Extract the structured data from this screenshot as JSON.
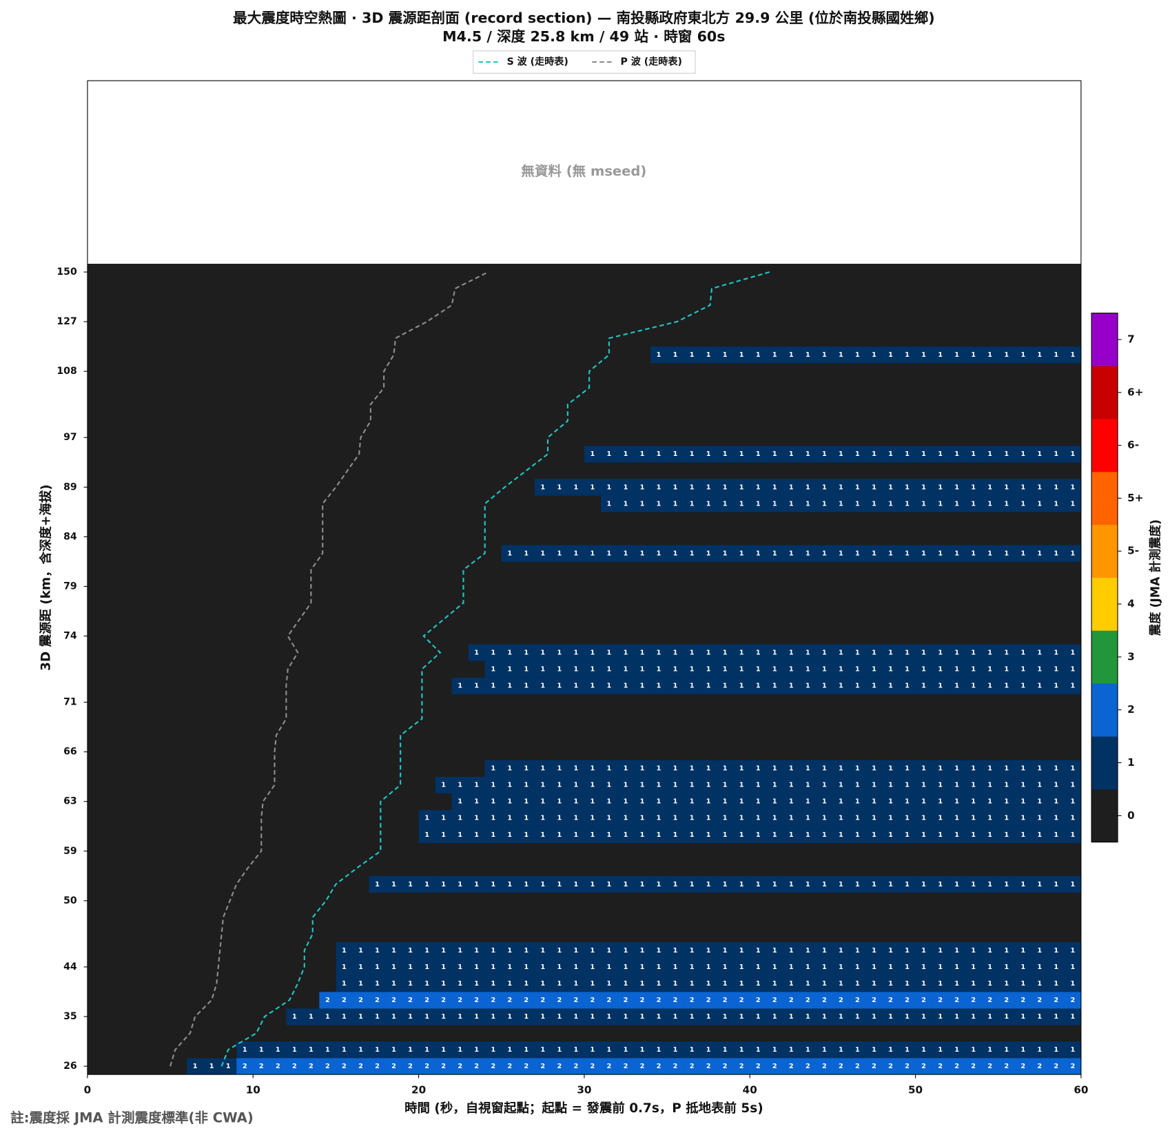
{
  "chart_data": {
    "type": "heatmap",
    "title": "最大震度時空熱圖 · 3D 震源距剖面 (record section) — 南投縣政府東北方  29.9  公里 (位於南投縣國姓鄉)",
    "subtitle": "M4.5 / 深度 25.8 km / 49 站 · 時窗 60s",
    "no_data_text": "無資料 (無 mseed)",
    "x_label": "時間 (秒，自視窗起點；起點 = 發震前 0.7s，P 抵地表前 5s)",
    "y_label": "3D 震源距 (km，含深度+海拔)",
    "footnote": "註:震度採 JMA 計測震度標準(非 CWA)",
    "xlim": [
      0,
      60
    ],
    "xticks": [
      0,
      10,
      20,
      30,
      40,
      50,
      60
    ],
    "y_categories": [
      26,
      null,
      null,
      35,
      null,
      null,
      44,
      null,
      null,
      null,
      50,
      null,
      null,
      59,
      null,
      null,
      63,
      null,
      null,
      66,
      null,
      null,
      71,
      null,
      null,
      null,
      74,
      null,
      null,
      79,
      null,
      null,
      84,
      null,
      null,
      89,
      null,
      null,
      97,
      null,
      null,
      null,
      108,
      null,
      null,
      127,
      null,
      null,
      150
    ],
    "z": [
      [
        0,
        0,
        0,
        0,
        0,
        0,
        1,
        1,
        1,
        2,
        2,
        2,
        2,
        2,
        2,
        2,
        2,
        2,
        2,
        2,
        2,
        2,
        2,
        2,
        2,
        2,
        2,
        2,
        2,
        2,
        2,
        2,
        2,
        2,
        2,
        2,
        2,
        2,
        2,
        2,
        2,
        2,
        2,
        2,
        2,
        2,
        2,
        2,
        2,
        2,
        2,
        2,
        2,
        2,
        2,
        2,
        2,
        2,
        2,
        2
      ],
      [
        0,
        0,
        0,
        0,
        0,
        0,
        0,
        0,
        0,
        1,
        1,
        1,
        1,
        1,
        1,
        1,
        1,
        1,
        1,
        1,
        1,
        1,
        1,
        1,
        1,
        1,
        1,
        1,
        1,
        1,
        1,
        1,
        1,
        1,
        1,
        1,
        1,
        1,
        1,
        1,
        1,
        1,
        1,
        1,
        1,
        1,
        1,
        1,
        1,
        1,
        1,
        1,
        1,
        1,
        1,
        1,
        1,
        1,
        1,
        1
      ],
      null,
      [
        0,
        0,
        0,
        0,
        0,
        0,
        0,
        0,
        0,
        0,
        0,
        0,
        1,
        1,
        1,
        1,
        1,
        1,
        1,
        1,
        1,
        1,
        1,
        1,
        1,
        1,
        1,
        1,
        1,
        1,
        1,
        1,
        1,
        1,
        1,
        1,
        1,
        1,
        1,
        1,
        1,
        1,
        1,
        1,
        1,
        1,
        1,
        1,
        1,
        1,
        1,
        1,
        1,
        1,
        1,
        1,
        1,
        1,
        1,
        1
      ],
      [
        0,
        0,
        0,
        0,
        0,
        0,
        0,
        0,
        0,
        0,
        0,
        0,
        0,
        0,
        2,
        2,
        2,
        2,
        2,
        2,
        2,
        2,
        2,
        2,
        2,
        2,
        2,
        2,
        2,
        2,
        2,
        2,
        2,
        2,
        2,
        2,
        2,
        2,
        2,
        2,
        2,
        2,
        2,
        2,
        2,
        2,
        2,
        2,
        2,
        2,
        2,
        2,
        2,
        2,
        2,
        2,
        2,
        2,
        2,
        2
      ],
      [
        0,
        0,
        0,
        0,
        0,
        0,
        0,
        0,
        0,
        0,
        0,
        0,
        0,
        0,
        0,
        1,
        1,
        1,
        1,
        1,
        1,
        1,
        1,
        1,
        1,
        1,
        1,
        1,
        1,
        1,
        1,
        1,
        1,
        1,
        1,
        1,
        1,
        1,
        1,
        1,
        1,
        1,
        1,
        1,
        1,
        1,
        1,
        1,
        1,
        1,
        1,
        1,
        1,
        1,
        1,
        1,
        1,
        1,
        1,
        1
      ],
      [
        0,
        0,
        0,
        0,
        0,
        0,
        0,
        0,
        0,
        0,
        0,
        0,
        0,
        0,
        0,
        1,
        1,
        1,
        1,
        1,
        1,
        1,
        1,
        1,
        1,
        1,
        1,
        1,
        1,
        1,
        1,
        1,
        1,
        1,
        1,
        1,
        1,
        1,
        1,
        1,
        1,
        1,
        1,
        1,
        1,
        1,
        1,
        1,
        1,
        1,
        1,
        1,
        1,
        1,
        1,
        1,
        1,
        1,
        1,
        1
      ],
      [
        0,
        0,
        0,
        0,
        0,
        0,
        0,
        0,
        0,
        0,
        0,
        0,
        0,
        0,
        0,
        1,
        1,
        1,
        1,
        1,
        1,
        1,
        1,
        1,
        1,
        1,
        1,
        1,
        1,
        1,
        1,
        1,
        1,
        1,
        1,
        1,
        1,
        1,
        1,
        1,
        1,
        1,
        1,
        1,
        1,
        1,
        1,
        1,
        1,
        1,
        1,
        1,
        1,
        1,
        1,
        1,
        1,
        1,
        1,
        1
      ],
      null,
      null,
      null,
      [
        0,
        0,
        0,
        0,
        0,
        0,
        0,
        0,
        0,
        0,
        0,
        0,
        0,
        0,
        0,
        0,
        0,
        1,
        1,
        1,
        1,
        1,
        1,
        1,
        1,
        1,
        1,
        1,
        1,
        1,
        1,
        1,
        1,
        1,
        1,
        1,
        1,
        1,
        1,
        1,
        1,
        1,
        1,
        1,
        1,
        1,
        1,
        1,
        1,
        1,
        1,
        1,
        1,
        1,
        1,
        1,
        1,
        1,
        1,
        1
      ],
      null,
      null,
      [
        0,
        0,
        0,
        0,
        0,
        0,
        0,
        0,
        0,
        0,
        0,
        0,
        0,
        0,
        0,
        0,
        0,
        0,
        0,
        0,
        1,
        1,
        1,
        1,
        1,
        1,
        1,
        1,
        1,
        1,
        1,
        1,
        1,
        1,
        1,
        1,
        1,
        1,
        1,
        1,
        1,
        1,
        1,
        1,
        1,
        1,
        1,
        1,
        1,
        1,
        1,
        1,
        1,
        1,
        1,
        1,
        1,
        1,
        1,
        1
      ],
      [
        0,
        0,
        0,
        0,
        0,
        0,
        0,
        0,
        0,
        0,
        0,
        0,
        0,
        0,
        0,
        0,
        0,
        0,
        0,
        0,
        1,
        1,
        1,
        1,
        1,
        1,
        1,
        1,
        1,
        1,
        1,
        1,
        1,
        1,
        1,
        1,
        1,
        1,
        1,
        1,
        1,
        1,
        1,
        1,
        1,
        1,
        1,
        1,
        1,
        1,
        1,
        1,
        1,
        1,
        1,
        1,
        1,
        1,
        1,
        1
      ],
      [
        0,
        0,
        0,
        0,
        0,
        0,
        0,
        0,
        0,
        0,
        0,
        0,
        0,
        0,
        0,
        0,
        0,
        0,
        0,
        0,
        0,
        0,
        1,
        1,
        1,
        1,
        1,
        1,
        1,
        1,
        1,
        1,
        1,
        1,
        1,
        1,
        1,
        1,
        1,
        1,
        1,
        1,
        1,
        1,
        1,
        1,
        1,
        1,
        1,
        1,
        1,
        1,
        1,
        1,
        1,
        1,
        1,
        1,
        1,
        1
      ],
      [
        0,
        0,
        0,
        0,
        0,
        0,
        0,
        0,
        0,
        0,
        0,
        0,
        0,
        0,
        0,
        0,
        0,
        0,
        0,
        0,
        0,
        1,
        1,
        1,
        1,
        1,
        1,
        1,
        1,
        1,
        1,
        1,
        1,
        1,
        1,
        1,
        1,
        1,
        1,
        1,
        1,
        1,
        1,
        1,
        1,
        1,
        1,
        1,
        1,
        1,
        1,
        1,
        1,
        1,
        1,
        1,
        1,
        1,
        1,
        1
      ],
      [
        0,
        0,
        0,
        0,
        0,
        0,
        0,
        0,
        0,
        0,
        0,
        0,
        0,
        0,
        0,
        0,
        0,
        0,
        0,
        0,
        0,
        0,
        0,
        0,
        1,
        1,
        1,
        1,
        1,
        1,
        1,
        1,
        1,
        1,
        1,
        1,
        1,
        1,
        1,
        1,
        1,
        1,
        1,
        1,
        1,
        1,
        1,
        1,
        1,
        1,
        1,
        1,
        1,
        1,
        1,
        1,
        1,
        1,
        1,
        1
      ],
      null,
      null,
      null,
      null,
      [
        0,
        0,
        0,
        0,
        0,
        0,
        0,
        0,
        0,
        0,
        0,
        0,
        0,
        0,
        0,
        0,
        0,
        0,
        0,
        0,
        0,
        0,
        1,
        1,
        1,
        1,
        1,
        1,
        1,
        1,
        1,
        1,
        1,
        1,
        1,
        1,
        1,
        1,
        1,
        1,
        1,
        1,
        1,
        1,
        1,
        1,
        1,
        1,
        1,
        1,
        1,
        1,
        1,
        1,
        1,
        1,
        1,
        1,
        1,
        1
      ],
      [
        0,
        0,
        0,
        0,
        0,
        0,
        0,
        0,
        0,
        0,
        0,
        0,
        0,
        0,
        0,
        0,
        0,
        0,
        0,
        0,
        0,
        0,
        0,
        0,
        1,
        1,
        1,
        1,
        1,
        1,
        1,
        1,
        1,
        1,
        1,
        1,
        1,
        1,
        1,
        1,
        1,
        1,
        1,
        1,
        1,
        1,
        1,
        1,
        1,
        1,
        1,
        1,
        1,
        1,
        1,
        1,
        1,
        1,
        1,
        1
      ],
      [
        0,
        0,
        0,
        0,
        0,
        0,
        0,
        0,
        0,
        0,
        0,
        0,
        0,
        0,
        0,
        0,
        0,
        0,
        0,
        0,
        0,
        0,
        0,
        1,
        1,
        1,
        1,
        1,
        1,
        1,
        1,
        1,
        1,
        1,
        1,
        1,
        1,
        1,
        1,
        1,
        1,
        1,
        1,
        1,
        1,
        1,
        1,
        1,
        1,
        1,
        1,
        1,
        1,
        1,
        1,
        1,
        1,
        1,
        1,
        1
      ],
      null,
      null,
      null,
      null,
      null,
      [
        0,
        0,
        0,
        0,
        0,
        0,
        0,
        0,
        0,
        0,
        0,
        0,
        0,
        0,
        0,
        0,
        0,
        0,
        0,
        0,
        0,
        0,
        0,
        0,
        0,
        1,
        1,
        1,
        1,
        1,
        1,
        1,
        1,
        1,
        1,
        1,
        1,
        1,
        1,
        1,
        1,
        1,
        1,
        1,
        1,
        1,
        1,
        1,
        1,
        1,
        1,
        1,
        1,
        1,
        1,
        1,
        1,
        1,
        1,
        1
      ],
      null,
      null,
      [
        0,
        0,
        0,
        0,
        0,
        0,
        0,
        0,
        0,
        0,
        0,
        0,
        0,
        0,
        0,
        0,
        0,
        0,
        0,
        0,
        0,
        0,
        0,
        0,
        0,
        0,
        0,
        0,
        0,
        0,
        0,
        1,
        1,
        1,
        1,
        1,
        1,
        1,
        1,
        1,
        1,
        1,
        1,
        1,
        1,
        1,
        1,
        1,
        1,
        1,
        1,
        1,
        1,
        1,
        1,
        1,
        1,
        1,
        1,
        1
      ],
      [
        0,
        0,
        0,
        0,
        0,
        0,
        0,
        0,
        0,
        0,
        0,
        0,
        0,
        0,
        0,
        0,
        0,
        0,
        0,
        0,
        0,
        0,
        0,
        0,
        0,
        0,
        0,
        1,
        1,
        1,
        1,
        1,
        1,
        1,
        1,
        1,
        1,
        1,
        1,
        1,
        1,
        1,
        1,
        1,
        1,
        1,
        1,
        1,
        1,
        1,
        1,
        1,
        1,
        1,
        1,
        1,
        1,
        1,
        1,
        1
      ],
      null,
      [
        0,
        0,
        0,
        0,
        0,
        0,
        0,
        0,
        0,
        0,
        0,
        0,
        0,
        0,
        0,
        0,
        0,
        0,
        0,
        0,
        0,
        0,
        0,
        0,
        0,
        0,
        0,
        0,
        0,
        0,
        1,
        1,
        1,
        1,
        1,
        1,
        1,
        1,
        1,
        1,
        1,
        1,
        1,
        1,
        1,
        1,
        1,
        1,
        1,
        1,
        1,
        1,
        1,
        1,
        1,
        1,
        1,
        1,
        1,
        1
      ],
      null,
      null,
      null,
      null,
      null,
      [
        0,
        0,
        0,
        0,
        0,
        0,
        0,
        0,
        0,
        0,
        0,
        0,
        0,
        0,
        0,
        0,
        0,
        0,
        0,
        0,
        0,
        0,
        0,
        0,
        0,
        0,
        0,
        0,
        0,
        0,
        0,
        0,
        0,
        0,
        1,
        1,
        1,
        1,
        1,
        1,
        1,
        1,
        1,
        1,
        1,
        1,
        1,
        1,
        1,
        1,
        1,
        1,
        1,
        1,
        1,
        1,
        1,
        1,
        1,
        1
      ],
      null,
      null,
      null,
      null,
      null
    ],
    "series": [
      {
        "name": "S 波 (走時表)",
        "color": "#20c4c4",
        "values": [
          8.1,
          8.5,
          10.2,
          10.7,
          12.2,
          12.7,
          13.1,
          13.1,
          13.6,
          13.6,
          14.4,
          15.0,
          16.3,
          17.7,
          17.7,
          17.7,
          17.7,
          18.9,
          18.9,
          18.9,
          18.9,
          20.2,
          20.2,
          20.2,
          20.2,
          21.3,
          20.3,
          21.5,
          22.7,
          22.7,
          22.7,
          24.0,
          24.0,
          24.0,
          24.0,
          25.2,
          26.5,
          27.8,
          27.8,
          29.0,
          29.0,
          30.3,
          30.3,
          31.5,
          31.5,
          35.6,
          37.6,
          37.7,
          41.2
        ]
      },
      {
        "name": "P 波 (走時表)",
        "color": "#8c8c8c",
        "values": [
          5.0,
          5.3,
          6.2,
          6.5,
          7.5,
          7.8,
          7.9,
          8.0,
          8.1,
          8.2,
          8.6,
          9.0,
          9.7,
          10.5,
          10.5,
          10.5,
          10.6,
          11.3,
          11.3,
          11.3,
          11.4,
          12.0,
          12.0,
          12.0,
          12.1,
          12.7,
          12.1,
          12.8,
          13.5,
          13.5,
          13.5,
          14.2,
          14.2,
          14.2,
          14.2,
          15.0,
          15.7,
          16.4,
          16.5,
          17.1,
          17.1,
          17.9,
          17.9,
          18.5,
          18.6,
          20.5,
          22.0,
          22.2,
          24.2
        ]
      }
    ],
    "colorbar": {
      "title": "震度 (JMA 計測震度)",
      "levels": [
        0,
        1,
        2,
        3,
        4,
        "5-",
        "5+",
        "6-",
        "6+",
        7
      ],
      "colors": [
        "#1e1e1e",
        "#003264",
        "#0a64d2",
        "#22963a",
        "#ffcc00",
        "#ff9600",
        "#ff6400",
        "#ff0000",
        "#c80000",
        "#9600c8"
      ]
    }
  }
}
